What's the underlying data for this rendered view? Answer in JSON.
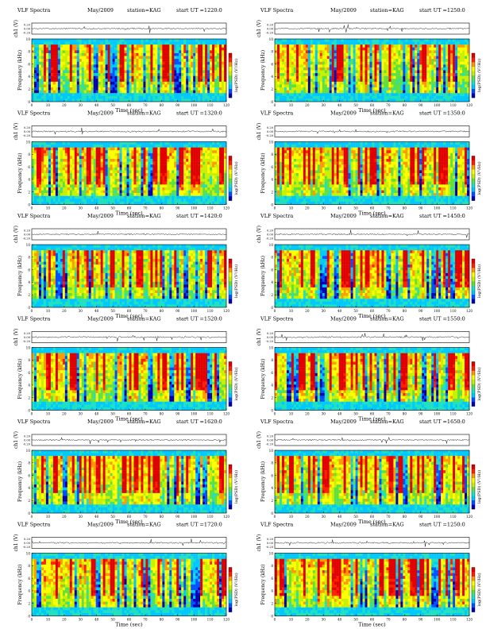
{
  "figure_title": "VLF Spectra",
  "colors": {
    "scale": [
      "#0000b0",
      "#0050ff",
      "#00c8ff",
      "#20e0c0",
      "#60e040",
      "#c8f000",
      "#ffff00",
      "#ff9a00",
      "#ff2000",
      "#e00000"
    ],
    "timeseries": "#000000"
  },
  "chart_data": [
    {
      "type": "heatmap",
      "title": "VLF Spectra",
      "date": "May/2009",
      "station": "station=KAG",
      "start_ut": "start UT =1220:0",
      "ts_ylabel": "ch1 (V)",
      "ts_yticks": [
        "0.20",
        "0.00",
        "-0.20"
      ],
      "ylabel": "Frequency (kHz)",
      "xlabel": "Time (sec)",
      "cbar_label": "log(PSD) (V²/Hz)",
      "x_ticks": [
        0,
        10,
        20,
        30,
        40,
        50,
        60,
        70,
        80,
        90,
        100,
        110,
        120
      ],
      "xlim": [
        0,
        120
      ],
      "y_ticks": [
        0,
        2,
        4,
        6,
        8,
        10
      ],
      "ylim": [
        0,
        10
      ]
    },
    {
      "type": "heatmap",
      "title": "VLF Spectra",
      "date": "May/2009",
      "station": "station=KAG",
      "start_ut": "start UT =1250:0",
      "ts_ylabel": "ch1 (V)",
      "ts_yticks": [
        "0.20",
        "0.00",
        "-0.20"
      ],
      "ylabel": "Frequency (kHz)",
      "xlabel": "Time (sec)",
      "cbar_label": "log(PSD) (V²/Hz)",
      "x_ticks": [
        0,
        10,
        20,
        30,
        40,
        50,
        60,
        70,
        80,
        90,
        100,
        110,
        120
      ],
      "xlim": [
        0,
        120
      ],
      "y_ticks": [
        0,
        2,
        4,
        6,
        8,
        10
      ],
      "ylim": [
        0,
        10
      ]
    },
    {
      "type": "heatmap",
      "title": "VLF Spectra",
      "date": "May/2009",
      "station": "station=KAG",
      "start_ut": "start UT =1320:0",
      "ts_ylabel": "ch1 (V)",
      "ts_yticks": [
        "0.20",
        "0.00",
        "-0.20"
      ],
      "ylabel": "Frequency (kHz)",
      "xlabel": "Time (sec)",
      "cbar_label": "log(PSD) (V²/Hz)",
      "x_ticks": [
        0,
        10,
        20,
        30,
        40,
        50,
        60,
        70,
        80,
        90,
        100,
        110,
        120
      ],
      "xlim": [
        0,
        120
      ],
      "y_ticks": [
        0,
        2,
        4,
        6,
        8,
        10
      ],
      "ylim": [
        0,
        10
      ]
    },
    {
      "type": "heatmap",
      "title": "VLF Spectra",
      "date": "May/2009",
      "station": "station=KAG",
      "start_ut": "start UT =1350:0",
      "ts_ylabel": "ch1 (V)",
      "ts_yticks": [
        "0.20",
        "0.00",
        "-0.20"
      ],
      "ylabel": "Frequency (kHz)",
      "xlabel": "Time (sec)",
      "cbar_label": "log(PSD) (V²/Hz)",
      "x_ticks": [
        0,
        10,
        20,
        30,
        40,
        50,
        60,
        70,
        80,
        90,
        100,
        110,
        120
      ],
      "xlim": [
        0,
        120
      ],
      "y_ticks": [
        0,
        2,
        4,
        6,
        8,
        10
      ],
      "ylim": [
        0,
        10
      ]
    },
    {
      "type": "heatmap",
      "title": "VLF Spectra",
      "date": "May/2009",
      "station": "station=KAG",
      "start_ut": "start UT =1420:0",
      "ts_ylabel": "ch1 (V)",
      "ts_yticks": [
        "0.20",
        "0.00",
        "-0.20"
      ],
      "ylabel": "Frequency (kHz)",
      "xlabel": "Time (sec)",
      "cbar_label": "log(PSD) (V²/Hz)",
      "x_ticks": [
        0,
        10,
        20,
        30,
        40,
        50,
        60,
        70,
        80,
        90,
        100,
        110,
        120
      ],
      "xlim": [
        0,
        120
      ],
      "y_ticks": [
        0,
        2,
        4,
        6,
        8,
        10
      ],
      "ylim": [
        0,
        10
      ]
    },
    {
      "type": "heatmap",
      "title": "VLF Spectra",
      "date": "May/2009",
      "station": "station=KAG",
      "start_ut": "start UT =1450:0",
      "ts_ylabel": "ch1 (V)",
      "ts_yticks": [
        "0.20",
        "0.00",
        "-0.20"
      ],
      "ylabel": "Frequency (kHz)",
      "xlabel": "Time (sec)",
      "cbar_label": "log(PSD) (V²/Hz)",
      "x_ticks": [
        0,
        10,
        20,
        30,
        40,
        50,
        60,
        70,
        80,
        90,
        100,
        110,
        120
      ],
      "xlim": [
        0,
        120
      ],
      "y_ticks": [
        0,
        2,
        4,
        6,
        8,
        10
      ],
      "ylim": [
        0,
        10
      ]
    },
    {
      "type": "heatmap",
      "title": "VLF Spectra",
      "date": "May/2009",
      "station": "station=KAG",
      "start_ut": "start UT =1520:0",
      "ts_ylabel": "ch1 (V)",
      "ts_yticks": [
        "0.20",
        "0.00",
        "-0.20"
      ],
      "ylabel": "Frequency (kHz)",
      "xlabel": "Time (sec)",
      "cbar_label": "log(PSD) (V²/Hz)",
      "x_ticks": [
        0,
        10,
        20,
        30,
        40,
        50,
        60,
        70,
        80,
        90,
        100,
        110,
        120
      ],
      "xlim": [
        0,
        120
      ],
      "y_ticks": [
        0,
        2,
        4,
        6,
        8,
        10
      ],
      "ylim": [
        0,
        10
      ]
    },
    {
      "type": "heatmap",
      "title": "VLF Spectra",
      "date": "May/2009",
      "station": "station=KAG",
      "start_ut": "start UT =1550:0",
      "ts_ylabel": "ch1 (V)",
      "ts_yticks": [
        "0.20",
        "0.00",
        "-0.20"
      ],
      "ylabel": "Frequency (kHz)",
      "xlabel": "Time (sec)",
      "cbar_label": "log(PSD) (V²/Hz)",
      "x_ticks": [
        0,
        10,
        20,
        30,
        40,
        50,
        60,
        70,
        80,
        90,
        100,
        110,
        120
      ],
      "xlim": [
        0,
        120
      ],
      "y_ticks": [
        0,
        2,
        4,
        6,
        8,
        10
      ],
      "ylim": [
        0,
        10
      ]
    },
    {
      "type": "heatmap",
      "title": "VLF Spectra",
      "date": "May/2009",
      "station": "station=KAG",
      "start_ut": "start UT =1620:0",
      "ts_ylabel": "ch1 (V)",
      "ts_yticks": [
        "0.20",
        "0.00",
        "-0.20"
      ],
      "ylabel": "Frequency (kHz)",
      "xlabel": "Time (sec)",
      "cbar_label": "log(PSD) (V²/Hz)",
      "x_ticks": [
        0,
        10,
        20,
        30,
        40,
        50,
        60,
        70,
        80,
        90,
        100,
        110,
        120
      ],
      "xlim": [
        0,
        120
      ],
      "y_ticks": [
        0,
        2,
        4,
        6,
        8,
        10
      ],
      "ylim": [
        0,
        10
      ]
    },
    {
      "type": "heatmap",
      "title": "VLF Spectra",
      "date": "May/2009",
      "station": "station=KAG",
      "start_ut": "start UT =1650:0",
      "ts_ylabel": "ch1 (V)",
      "ts_yticks": [
        "0.20",
        "0.00",
        "-0.20"
      ],
      "ylabel": "Frequency (kHz)",
      "xlabel": "Time (sec)",
      "cbar_label": "log(PSD) (V²/Hz)",
      "x_ticks": [
        0,
        10,
        20,
        30,
        40,
        50,
        60,
        70,
        80,
        90,
        100,
        110,
        120
      ],
      "xlim": [
        0,
        120
      ],
      "y_ticks": [
        0,
        2,
        4,
        6,
        8,
        10
      ],
      "ylim": [
        0,
        10
      ]
    },
    {
      "type": "heatmap",
      "title": "VLF Spectra",
      "date": "May/2009",
      "station": "station=KAG",
      "start_ut": "start UT =1720:0",
      "ts_ylabel": "ch1 (V)",
      "ts_yticks": [
        "0.20",
        "0.00",
        "-0.20"
      ],
      "ylabel": "Frequency (kHz)",
      "xlabel": "Time (sec)",
      "cbar_label": "log(PSD) (V²/Hz)",
      "x_ticks": [
        0,
        10,
        20,
        30,
        40,
        50,
        60,
        70,
        80,
        90,
        100,
        110,
        120
      ],
      "xlim": [
        0,
        120
      ],
      "y_ticks": [
        0,
        2,
        4,
        6,
        8,
        10
      ],
      "ylim": [
        0,
        10
      ]
    },
    {
      "type": "heatmap",
      "title": "VLF Spectra",
      "date": "May/2009",
      "station": "station=KAG",
      "start_ut": "start UT =1250:0",
      "ts_ylabel": "ch1 (V)",
      "ts_yticks": [
        "0.20",
        "0.00",
        "-0.20"
      ],
      "ylabel": "Frequency (kHz)",
      "xlabel": "Time (sec)",
      "cbar_label": "log(PSD) (V²/Hz)",
      "x_ticks": [
        0,
        10,
        20,
        30,
        40,
        50,
        60,
        70,
        80,
        90,
        100,
        110,
        120
      ],
      "xlim": [
        0,
        120
      ],
      "y_ticks": [
        0,
        2,
        4,
        6,
        8,
        10
      ],
      "ylim": [
        0,
        10
      ]
    }
  ]
}
